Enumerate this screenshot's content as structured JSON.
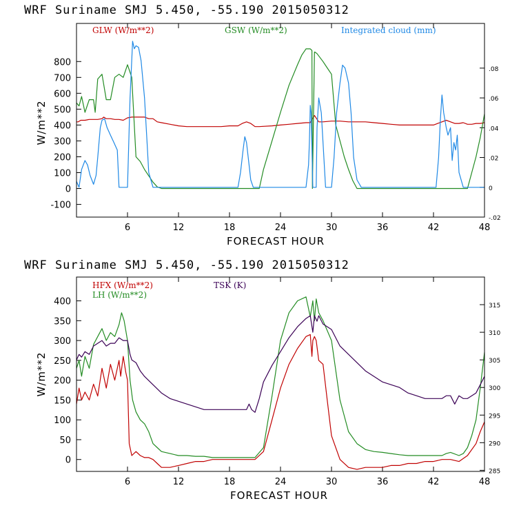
{
  "chart_data": [
    {
      "type": "line",
      "title": "WRF   Suriname SMJ   5.450, -55.190  2015050312",
      "xlabel": "FORECAST HOUR",
      "ylabel": "W/m**2",
      "xlim": [
        0,
        48
      ],
      "ylim": [
        -180,
        1040
      ],
      "y2lim": [
        -0.02,
        0.11
      ],
      "x_ticks": [
        6,
        12,
        18,
        24,
        30,
        36,
        42,
        48
      ],
      "y_ticks": [
        -100,
        0,
        100,
        200,
        300,
        400,
        500,
        600,
        700,
        800
      ],
      "y2_ticks": [
        -0.02,
        0,
        0.02,
        0.04,
        0.06,
        0.08
      ],
      "y2_tick_labels": [
        "-.02",
        "0",
        ".02",
        ".04",
        ".06",
        ".08"
      ],
      "grid": false,
      "legend": "top",
      "series": [
        {
          "name": "GLW (W/m**2)",
          "color": "#c00000",
          "axis": "left",
          "x": [
            0,
            0.2,
            0.5,
            1,
            1.5,
            2,
            2.5,
            3,
            3.2,
            3.5,
            4,
            4.5,
            5,
            5.5,
            6,
            6.5,
            7,
            7.5,
            8,
            8.5,
            9,
            9.5,
            10,
            11,
            12,
            13,
            14,
            15,
            16,
            17,
            18,
            19,
            19.5,
            20,
            20.5,
            21,
            21.5,
            22,
            23,
            24,
            25,
            26,
            27,
            27.5,
            28,
            28.5,
            29,
            30,
            31,
            32,
            33,
            34,
            35,
            36,
            37,
            38,
            39,
            40,
            41,
            42,
            42.5,
            43,
            43.5,
            44,
            44.5,
            45,
            45.5,
            46,
            46.5,
            47,
            47.5,
            48
          ],
          "values": [
            420,
            420,
            430,
            430,
            435,
            435,
            435,
            440,
            450,
            440,
            440,
            435,
            435,
            430,
            445,
            450,
            450,
            450,
            450,
            440,
            440,
            420,
            415,
            405,
            395,
            390,
            390,
            390,
            390,
            390,
            395,
            395,
            410,
            420,
            410,
            390,
            390,
            392,
            395,
            400,
            405,
            410,
            415,
            415,
            460,
            420,
            420,
            425,
            425,
            420,
            420,
            420,
            415,
            410,
            405,
            400,
            400,
            400,
            400,
            400,
            410,
            420,
            430,
            420,
            410,
            410,
            415,
            405,
            405,
            410,
            410,
            415
          ]
        },
        {
          "name": "GSW (W/m**2)",
          "color": "#228b22",
          "axis": "left",
          "x": [
            0,
            0.3,
            0.6,
            1,
            1.5,
            2,
            2.2,
            2.5,
            3,
            3.5,
            4,
            4.5,
            5,
            5.5,
            6,
            6.5,
            7,
            7.5,
            8,
            8.5,
            9,
            9.5,
            10,
            11,
            12,
            13,
            14,
            15,
            16,
            17,
            18,
            19,
            20,
            20.5,
            21,
            21.5,
            22,
            23,
            24,
            25,
            26,
            26.5,
            27,
            27.5,
            27.7,
            27.75,
            28,
            28.05,
            28.3,
            29,
            29.5,
            30,
            30.5,
            31,
            31.5,
            32,
            32.5,
            33,
            34,
            35,
            36,
            37,
            38,
            39,
            40,
            41,
            42,
            43,
            44,
            45,
            45.5,
            46,
            46.5,
            47,
            47.5,
            48
          ],
          "values": [
            540,
            520,
            580,
            480,
            560,
            560,
            480,
            690,
            720,
            560,
            560,
            700,
            720,
            700,
            780,
            700,
            200,
            170,
            120,
            80,
            40,
            10,
            0,
            0,
            0,
            0,
            0,
            0,
            0,
            0,
            0,
            0,
            0,
            0,
            0,
            0,
            120,
            300,
            480,
            650,
            780,
            840,
            880,
            880,
            870,
            0,
            860,
            860,
            850,
            800,
            760,
            720,
            400,
            300,
            200,
            120,
            50,
            0,
            0,
            0,
            0,
            0,
            0,
            0,
            0,
            0,
            0,
            0,
            0,
            0,
            0,
            0,
            100,
            200,
            320,
            470
          ]
        },
        {
          "name": "Integrated cloud (mm)",
          "color": "#1e88e5",
          "axis": "right",
          "x": [
            0,
            0.3,
            0.6,
            1,
            1.3,
            1.6,
            2,
            2.3,
            2.5,
            2.8,
            3,
            3.3,
            3.6,
            4,
            4.4,
            4.8,
            5,
            5.3,
            5.6,
            5.8,
            6,
            6.3,
            6.6,
            6.8,
            7,
            7.3,
            7.6,
            8,
            8.3,
            8.5,
            9,
            9.5,
            10,
            11,
            12,
            13,
            14,
            15,
            16,
            17,
            18,
            19,
            19.3,
            19.6,
            19.8,
            20,
            20.3,
            20.5,
            20.8,
            21,
            22,
            24,
            26,
            27,
            27.3,
            27.4,
            27.5,
            27.6,
            27.8,
            28,
            28.2,
            28.3,
            28.5,
            28.8,
            29,
            29.3,
            29.6,
            30,
            30.3,
            30.6,
            31,
            31.3,
            31.6,
            32,
            32.3,
            32.6,
            33,
            33.5,
            34,
            36,
            38,
            40,
            41,
            42,
            42.3,
            42.6,
            42.8,
            43,
            43.2,
            43.5,
            43.7,
            44,
            44.2,
            44.4,
            44.6,
            44.8,
            45,
            45.5,
            46,
            47,
            48
          ],
          "values": [
            0.004,
            0.0,
            0.012,
            0.018,
            0.015,
            0.008,
            0.002,
            0.008,
            0.02,
            0.04,
            0.045,
            0.046,
            0.04,
            0.035,
            0.03,
            0.025,
            0.0,
            0.0,
            0.0,
            0.0,
            0.0,
            0.06,
            0.098,
            0.093,
            0.095,
            0.094,
            0.085,
            0.06,
            0.03,
            0.01,
            0.0,
            0.0,
            0.0,
            0.0,
            0.0,
            0.0,
            0.0,
            0.0,
            0.0,
            0.0,
            0.0,
            0.0,
            0.01,
            0.025,
            0.034,
            0.03,
            0.015,
            0.005,
            0.0,
            0.0,
            0.0,
            0.0,
            0.0,
            0.0,
            0.015,
            0.03,
            0.055,
            0.05,
            0.0,
            0.0,
            0.0,
            0.04,
            0.06,
            0.05,
            0.03,
            0.0,
            0.0,
            0.0,
            0.02,
            0.05,
            0.07,
            0.082,
            0.08,
            0.07,
            0.05,
            0.02,
            0.005,
            0.0,
            0.0,
            0.0,
            0.0,
            0.0,
            0.0,
            0.0,
            0.0,
            0.02,
            0.045,
            0.062,
            0.05,
            0.04,
            0.035,
            0.04,
            0.018,
            0.03,
            0.025,
            0.035,
            0.01,
            0.0,
            0.0,
            0.0,
            0.0
          ]
        }
      ]
    },
    {
      "type": "line",
      "title": "WRF   Suriname SMJ   5.450, -55.190  2015050312",
      "xlabel": "FORECAST HOUR",
      "ylabel": "W/m**2",
      "xlim": [
        0,
        48
      ],
      "ylim": [
        -30,
        460
      ],
      "y2lim": [
        284.8,
        320
      ],
      "x_ticks": [
        6,
        12,
        18,
        24,
        30,
        36,
        42,
        48
      ],
      "y_ticks": [
        0,
        50,
        100,
        150,
        200,
        250,
        300,
        350,
        400
      ],
      "y2_ticks": [
        285,
        290,
        295,
        300,
        305,
        310,
        315
      ],
      "y2_tick_labels": [
        "285",
        "290",
        "295",
        "300",
        "305",
        "310",
        "315"
      ],
      "grid": false,
      "legend": "top-left",
      "series": [
        {
          "name": "HFX (W/m**2)",
          "color": "#c00000",
          "axis": "left",
          "x": [
            0,
            0.3,
            0.6,
            1,
            1.5,
            2,
            2.5,
            3,
            3.5,
            4,
            4.5,
            5,
            5.2,
            5.5,
            5.8,
            6,
            6.2,
            6.5,
            7,
            7.5,
            8,
            8.5,
            9,
            9.5,
            10,
            11,
            12,
            13,
            14,
            15,
            16,
            17,
            18,
            19,
            20,
            21,
            22,
            23,
            24,
            25,
            26,
            27,
            27.5,
            27.7,
            27.8,
            28,
            28.2,
            28.5,
            29,
            29.5,
            30,
            31,
            32,
            33,
            34,
            35,
            36,
            37,
            38,
            39,
            40,
            41,
            42,
            43,
            44,
            45,
            46,
            47,
            47.5,
            48
          ],
          "values": [
            140,
            180,
            150,
            170,
            150,
            190,
            160,
            230,
            180,
            240,
            200,
            250,
            210,
            260,
            220,
            200,
            40,
            10,
            20,
            10,
            5,
            5,
            0,
            -10,
            -20,
            -20,
            -15,
            -10,
            -5,
            -5,
            0,
            0,
            0,
            0,
            0,
            0,
            20,
            100,
            180,
            240,
            280,
            310,
            315,
            260,
            300,
            310,
            300,
            250,
            240,
            150,
            60,
            0,
            -20,
            -25,
            -20,
            -20,
            -20,
            -15,
            -15,
            -10,
            -10,
            -5,
            -5,
            0,
            0,
            -5,
            10,
            40,
            70,
            95
          ]
        },
        {
          "name": "LH (W/m**2)",
          "color": "#228b22",
          "axis": "left",
          "x": [
            0,
            0.3,
            0.6,
            1,
            1.5,
            2,
            2.5,
            3,
            3.5,
            4,
            4.5,
            5,
            5.3,
            5.6,
            6,
            6.3,
            6.6,
            7,
            7.5,
            8,
            8.5,
            9,
            9.5,
            10,
            11,
            12,
            13,
            14,
            15,
            16,
            17,
            18,
            19,
            20,
            21,
            22,
            23,
            24,
            25,
            26,
            27,
            27.5,
            27.8,
            28,
            28.2,
            28.5,
            29,
            30,
            31,
            32,
            33,
            34,
            35,
            36,
            37,
            38,
            39,
            40,
            41,
            42,
            43,
            43.5,
            44,
            45,
            45.5,
            46,
            46.5,
            47,
            47.5,
            48
          ],
          "values": [
            230,
            250,
            210,
            260,
            230,
            290,
            310,
            330,
            300,
            320,
            310,
            340,
            370,
            350,
            300,
            200,
            150,
            120,
            100,
            90,
            70,
            40,
            30,
            20,
            15,
            10,
            10,
            8,
            8,
            5,
            5,
            5,
            5,
            5,
            5,
            30,
            160,
            300,
            370,
            400,
            410,
            360,
            400,
            350,
            405,
            370,
            350,
            300,
            150,
            70,
            40,
            25,
            20,
            18,
            15,
            12,
            10,
            10,
            10,
            10,
            10,
            15,
            18,
            10,
            15,
            30,
            60,
            100,
            180,
            270
          ]
        },
        {
          "name": "TSK (K)",
          "color": "#3a0055",
          "axis": "right",
          "x": [
            0,
            0.3,
            0.6,
            1,
            1.5,
            2,
            2.5,
            3,
            3.5,
            4,
            4.5,
            5,
            5.5,
            6,
            6.3,
            6.5,
            7,
            7.5,
            8,
            9,
            10,
            11,
            12,
            13,
            14,
            15,
            16,
            17,
            18,
            19,
            20,
            20.3,
            20.6,
            21,
            21.5,
            22,
            23,
            24,
            25,
            26,
            27,
            27.5,
            27.8,
            28,
            28.3,
            28.5,
            29,
            30,
            31,
            32,
            33,
            34,
            35,
            36,
            37,
            38,
            39,
            40,
            41,
            42,
            43,
            43.5,
            44,
            44.5,
            45,
            45.5,
            46,
            47,
            48
          ],
          "values": [
            305,
            306,
            305.5,
            306.5,
            306,
            307.5,
            308,
            308.5,
            307.5,
            308,
            308,
            309,
            308.5,
            308.5,
            306,
            305,
            304.5,
            303,
            302,
            300.5,
            299,
            298,
            297.5,
            297,
            296.5,
            296,
            296,
            296,
            296,
            296,
            296,
            297,
            296,
            295.5,
            298,
            301,
            304,
            306.5,
            309,
            311,
            312.5,
            313,
            310,
            313,
            312,
            313,
            311.5,
            310.5,
            307.5,
            306,
            304.5,
            303,
            302,
            301,
            300.5,
            300,
            299,
            298.5,
            298,
            298,
            298,
            298.5,
            298.5,
            297,
            298.5,
            298,
            298,
            299,
            302
          ]
        }
      ]
    }
  ]
}
